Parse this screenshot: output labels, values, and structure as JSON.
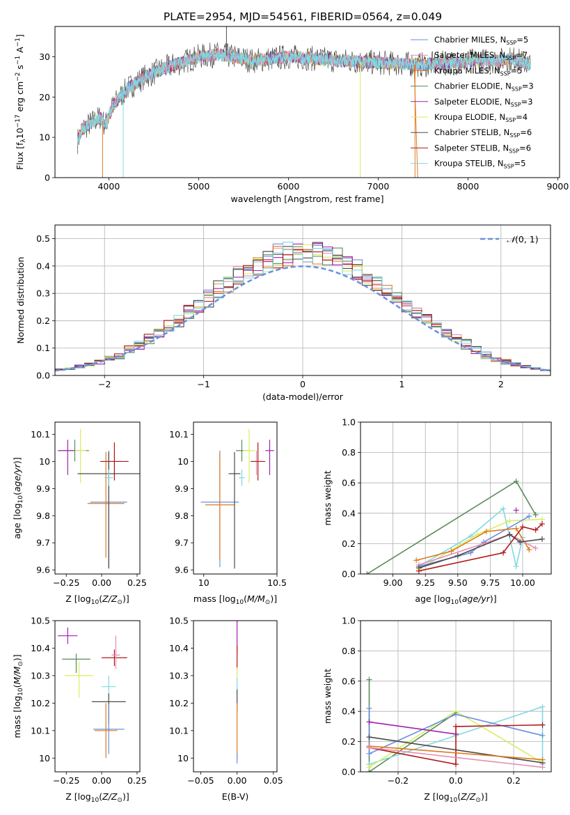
{
  "figure_title": "PLATE=2954, MJD=54561, FIBERID=0564, z=0.049",
  "colors": {
    "Chabrier MILES": "#6a8fdc",
    "Salpeter MILES": "#e68ab4",
    "Kroupa MILES": "#dd7a1e",
    "Chabrier ELODIE": "#5a8a5a",
    "Salpeter ELODIE": "#a020b0",
    "Kroupa ELODIE": "#d8ee60",
    "Chabrier STELIB": "#4a4a4a",
    "Salpeter STELIB": "#b01818",
    "Kroupa STELIB": "#80d8e0"
  },
  "legend": [
    {
      "name": "Chabrier MILES",
      "label": "Chabrier MILES, N",
      "sub": "SSP",
      "tail": "=5"
    },
    {
      "name": "Salpeter MILES",
      "label": "Salpeter MILES, N",
      "sub": "SSP",
      "tail": "=7"
    },
    {
      "name": "Kroupa MILES",
      "label": "Kroupa MILES, N",
      "sub": "SSP",
      "tail": "=5"
    },
    {
      "name": "Chabrier ELODIE",
      "label": "Chabrier ELODIE, N",
      "sub": "SSP",
      "tail": "=3"
    },
    {
      "name": "Salpeter ELODIE",
      "label": "Salpeter ELODIE, N",
      "sub": "SSP",
      "tail": "=3"
    },
    {
      "name": "Kroupa ELODIE",
      "label": "Kroupa ELODIE, N",
      "sub": "SSP",
      "tail": "=4"
    },
    {
      "name": "Chabrier STELIB",
      "label": "Chabrier STELIB, N",
      "sub": "SSP",
      "tail": "=6"
    },
    {
      "name": "Salpeter STELIB",
      "label": "Salpeter STELIB, N",
      "sub": "SSP",
      "tail": "=6"
    },
    {
      "name": "Kroupa STELIB",
      "label": "Kroupa STELIB, N",
      "sub": "SSP",
      "tail": "=5"
    }
  ],
  "chart_data": [
    {
      "id": "spectrum",
      "type": "line",
      "xlabel": "wavelength [Angstrom, rest frame]",
      "ylabel": "Flux [f_λ 10^-17 erg cm^-2 s^-1 A^-1]",
      "xlim": [
        3400,
        9020
      ],
      "ylim": [
        0,
        37.5
      ],
      "xticks": [
        4000,
        5000,
        6000,
        7000,
        8000,
        9000
      ],
      "yticks": [
        0,
        10,
        20,
        30
      ],
      "grid": false,
      "legend_position": "top-right",
      "continuum": [
        [
          3650,
          9
        ],
        [
          3700,
          12
        ],
        [
          3800,
          13.5
        ],
        [
          3900,
          15
        ],
        [
          3960,
          13
        ],
        [
          4050,
          18
        ],
        [
          4200,
          22
        ],
        [
          4400,
          25
        ],
        [
          4600,
          27
        ],
        [
          4800,
          28.5
        ],
        [
          5000,
          30
        ],
        [
          5200,
          30.5
        ],
        [
          5400,
          30
        ],
        [
          5600,
          29
        ],
        [
          5800,
          29.5
        ],
        [
          6000,
          30
        ],
        [
          6300,
          29.5
        ],
        [
          6600,
          29
        ],
        [
          7000,
          28.5
        ],
        [
          7500,
          28
        ],
        [
          7800,
          28.5
        ],
        [
          8100,
          29
        ],
        [
          8300,
          29
        ],
        [
          8500,
          29.5
        ],
        [
          8700,
          28
        ]
      ],
      "spikes": [
        [
          3930,
          0,
          "Kroupa MILES"
        ],
        [
          4160,
          0,
          "Kroupa STELIB"
        ],
        [
          6800,
          0,
          "Kroupa ELODIE"
        ],
        [
          7410,
          0,
          "Kroupa MILES"
        ],
        [
          5310,
          37.5,
          "Chabrier STELIB"
        ]
      ]
    },
    {
      "id": "residuals",
      "type": "histogram",
      "xlabel": "(data-model)/error",
      "ylabel": "Normed distribution",
      "xlim": [
        -2.5,
        2.5
      ],
      "ylim": [
        0,
        0.55
      ],
      "xticks": [
        -2,
        -1,
        0,
        1,
        2
      ],
      "yticks": [
        0.0,
        0.1,
        0.2,
        0.3,
        0.4,
        0.5
      ],
      "grid": true,
      "legend_position": "top-right",
      "reference_curve": {
        "name": "N(0,1)",
        "label_text": "(0, 1)",
        "color": "#6a8fdc"
      },
      "bin_width": 0.1
    },
    {
      "id": "age_vs_Z",
      "type": "errorbar",
      "xlabel": "Z [log10(Z/Z⊙)]",
      "ylabel": "age  [log10(age/yr)]",
      "xlim": [
        -0.33,
        0.27
      ],
      "ylim": [
        9.585,
        10.145
      ],
      "xticks": [
        -0.25,
        0.0,
        0.25
      ],
      "xticklabels": [
        "−0.25",
        "0.00",
        "0.25"
      ],
      "yticks": [
        9.6,
        9.7,
        9.8,
        9.9,
        10.0,
        10.1
      ],
      "points": [
        {
          "series": "Chabrier MILES",
          "x": 0.05,
          "y": 9.85,
          "xerr": 0.13,
          "yerr": [
            0.24,
            0.19
          ]
        },
        {
          "series": "Kroupa MILES",
          "x": 0.03,
          "y": 9.845,
          "xerr": 0.13,
          "yerr": [
            0.2,
            0.19
          ]
        },
        {
          "series": "Salpeter MILES",
          "x": 0.09,
          "y": 10.0,
          "xerr": 0.05,
          "yerr": [
            0.05,
            0.04
          ]
        },
        {
          "series": "Chabrier ELODIE",
          "x": -0.19,
          "y": 10.04,
          "xerr": 0.1,
          "yerr": [
            0.04,
            0.04
          ]
        },
        {
          "series": "Salpeter ELODIE",
          "x": -0.24,
          "y": 10.04,
          "xerr": 0.07,
          "yerr": [
            0.09,
            0.04
          ]
        },
        {
          "series": "Kroupa ELODIE",
          "x": -0.15,
          "y": 10.04,
          "xerr": 0.04,
          "yerr": [
            0.12,
            0.08
          ]
        },
        {
          "series": "Chabrier STELIB",
          "x": 0.05,
          "y": 9.955,
          "xerr": 0.22,
          "yerr": [
            0.35,
            0.08
          ]
        },
        {
          "series": "Salpeter STELIB",
          "x": 0.09,
          "y": 10.0,
          "xerr": 0.1,
          "yerr": [
            0.07,
            0.07
          ]
        },
        {
          "series": "Kroupa STELIB",
          "x": 0.05,
          "y": 9.94,
          "xerr": 0.03,
          "yerr": [
            0.03,
            0.03
          ]
        }
      ]
    },
    {
      "id": "age_vs_mass",
      "type": "errorbar",
      "xlabel": "mass [log10(M/M⊙)]",
      "ylabel": "",
      "xlim": [
        9.93,
        10.5
      ],
      "ylim": [
        9.585,
        10.145
      ],
      "xticks": [
        10.0,
        10.5
      ],
      "yticks": [
        9.6,
        9.7,
        9.8,
        9.9,
        10.0,
        10.1
      ],
      "points": [
        {
          "series": "Chabrier MILES",
          "x": 10.11,
          "y": 9.85,
          "xerr": 0.13,
          "yerr": [
            0.24,
            0.19
          ]
        },
        {
          "series": "Kroupa MILES",
          "x": 10.11,
          "y": 9.84,
          "xerr": 0.1,
          "yerr": [
            0.2,
            0.19
          ]
        },
        {
          "series": "Salpeter MILES",
          "x": 10.36,
          "y": 10.0,
          "xerr": 0.04,
          "yerr": [
            0.05,
            0.04
          ]
        },
        {
          "series": "Chabrier ELODIE",
          "x": 10.26,
          "y": 10.04,
          "xerr": 0.04,
          "yerr": [
            0.04,
            0.04
          ]
        },
        {
          "series": "Salpeter ELODIE",
          "x": 10.45,
          "y": 10.04,
          "xerr": 0.03,
          "yerr": [
            0.09,
            0.04
          ]
        },
        {
          "series": "Kroupa ELODIE",
          "x": 10.31,
          "y": 10.04,
          "xerr": 0.04,
          "yerr": [
            0.12,
            0.08
          ]
        },
        {
          "series": "Chabrier STELIB",
          "x": 10.21,
          "y": 9.955,
          "xerr": 0.04,
          "yerr": [
            0.35,
            0.08
          ]
        },
        {
          "series": "Salpeter STELIB",
          "x": 10.37,
          "y": 10.0,
          "xerr": 0.05,
          "yerr": [
            0.07,
            0.07
          ]
        },
        {
          "series": "Kroupa STELIB",
          "x": 10.26,
          "y": 9.94,
          "xerr": 0.02,
          "yerr": [
            0.03,
            0.03
          ]
        }
      ]
    },
    {
      "id": "weight_vs_age",
      "type": "line",
      "xlabel": "age  [log10(age/yr)]",
      "ylabel": "mass weight",
      "xlim": [
        8.75,
        10.22
      ],
      "ylim": [
        0,
        1.0
      ],
      "xticks": [
        9.0,
        9.25,
        9.5,
        9.75,
        10.0
      ],
      "xticklabels": [
        "9.00",
        "9.25",
        "9.50",
        "9.75",
        "10.00"
      ],
      "yticks": [
        0,
        0.2,
        0.4,
        0.6,
        0.8,
        1.0
      ],
      "grid": true,
      "series": [
        {
          "name": "Chabrier ELODIE",
          "points": [
            [
              8.8,
              0.0
            ],
            [
              9.95,
              0.61
            ],
            [
              10.1,
              0.39
            ]
          ]
        },
        {
          "name": "Kroupa STELIB",
          "points": [
            [
              9.2,
              0.05
            ],
            [
              9.6,
              0.25
            ],
            [
              9.85,
              0.43
            ],
            [
              9.95,
              0.05
            ],
            [
              10.0,
              0.24
            ]
          ]
        },
        {
          "name": "Kroupa ELODIE",
          "points": [
            [
              9.2,
              0.03
            ],
            [
              9.65,
              0.26
            ],
            [
              9.9,
              0.35
            ],
            [
              10.15,
              0.36
            ]
          ]
        },
        {
          "name": "Chabrier MILES",
          "points": [
            [
              9.2,
              0.05
            ],
            [
              9.6,
              0.14
            ],
            [
              9.7,
              0.21
            ],
            [
              10.05,
              0.38
            ]
          ]
        },
        {
          "name": "Kroupa MILES",
          "points": [
            [
              9.18,
              0.09
            ],
            [
              9.45,
              0.15
            ],
            [
              9.72,
              0.28
            ],
            [
              9.95,
              0.3
            ],
            [
              10.05,
              0.16
            ]
          ]
        },
        {
          "name": "Salpeter MILES",
          "points": [
            [
              9.2,
              0.06
            ],
            [
              9.7,
              0.2
            ],
            [
              9.9,
              0.26
            ],
            [
              10.1,
              0.17
            ]
          ]
        },
        {
          "name": "Chabrier STELIB",
          "points": [
            [
              9.2,
              0.04
            ],
            [
              9.5,
              0.12
            ],
            [
              9.9,
              0.26
            ],
            [
              9.98,
              0.21
            ],
            [
              10.15,
              0.23
            ]
          ]
        },
        {
          "name": "Salpeter STELIB",
          "points": [
            [
              9.2,
              0.02
            ],
            [
              9.85,
              0.14
            ],
            [
              10.0,
              0.31
            ],
            [
              10.1,
              0.29
            ],
            [
              10.15,
              0.33
            ]
          ]
        },
        {
          "name": "Salpeter ELODIE",
          "points": [
            [
              9.95,
              0.42
            ]
          ]
        }
      ]
    },
    {
      "id": "mass_vs_Z",
      "type": "errorbar",
      "xlabel": "Z [log10(Z/Z⊙)]",
      "ylabel": "mass [log10(M/M⊙)]",
      "xlim": [
        -0.33,
        0.27
      ],
      "ylim": [
        9.95,
        10.5
      ],
      "xticks": [
        -0.25,
        0.0,
        0.25
      ],
      "xticklabels": [
        "−0.25",
        "0.00",
        "0.25"
      ],
      "yticks": [
        10.0,
        10.1,
        10.2,
        10.3,
        10.4,
        10.5
      ],
      "points": [
        {
          "series": "Salpeter ELODIE",
          "x": -0.24,
          "y": 10.445,
          "xerr": 0.07,
          "yerr": [
            0.03,
            0.03
          ]
        },
        {
          "series": "Salpeter STELIB",
          "x": 0.09,
          "y": 10.365,
          "xerr": 0.09,
          "yerr": [
            0.03,
            0.03
          ]
        },
        {
          "series": "Salpeter MILES",
          "x": 0.1,
          "y": 10.375,
          "xerr": 0.03,
          "yerr": [
            0.05,
            0.07
          ]
        },
        {
          "series": "Chabrier ELODIE",
          "x": -0.18,
          "y": 10.36,
          "xerr": 0.1,
          "yerr": [
            0.05,
            0.02
          ]
        },
        {
          "series": "Kroupa ELODIE",
          "x": -0.16,
          "y": 10.3,
          "xerr": 0.1,
          "yerr": [
            0.08,
            0.05
          ]
        },
        {
          "series": "Kroupa STELIB",
          "x": 0.05,
          "y": 10.26,
          "xerr": 0.05,
          "yerr": [
            0.04,
            0.04
          ]
        },
        {
          "series": "Chabrier STELIB",
          "x": 0.05,
          "y": 10.205,
          "xerr": 0.12,
          "yerr": [
            0.08,
            0.03
          ]
        },
        {
          "series": "Kroupa MILES",
          "x": 0.03,
          "y": 10.1,
          "xerr": 0.08,
          "yerr": [
            0.1,
            0.1
          ]
        },
        {
          "series": "Chabrier MILES",
          "x": 0.05,
          "y": 10.105,
          "xerr": 0.11,
          "yerr": [
            0.09,
            0.09
          ]
        }
      ]
    },
    {
      "id": "mass_vs_EBV",
      "type": "errorbar",
      "xlabel": "E(B-V)",
      "ylabel": "",
      "xlim": [
        -0.06,
        0.055
      ],
      "ylim": [
        9.95,
        10.5
      ],
      "xticks": [
        -0.05,
        0.0,
        0.05
      ],
      "xticklabels": [
        "−0.05",
        "0.00",
        "0.05"
      ],
      "yticks": [
        10.0,
        10.1,
        10.2,
        10.3,
        10.4,
        10.5
      ],
      "points": [
        {
          "series": "Salpeter ELODIE",
          "x": 0.0,
          "y": 10.44,
          "xerr": 0,
          "yerr": [
            0.06,
            0.06
          ]
        },
        {
          "series": "Salpeter STELIB",
          "x": 0.0,
          "y": 10.37,
          "xerr": 0,
          "yerr": [
            0.05,
            0.04
          ]
        },
        {
          "series": "Kroupa ELODIE",
          "x": 0.0,
          "y": 10.3,
          "xerr": 0,
          "yerr": [
            0.03,
            0.03
          ]
        },
        {
          "series": "Kroupa STELIB",
          "x": 0.0,
          "y": 10.26,
          "xerr": 0,
          "yerr": [
            0.03,
            0.03
          ]
        },
        {
          "series": "Chabrier STELIB",
          "x": 0.0,
          "y": 10.21,
          "xerr": 0,
          "yerr": [
            0.04,
            0.04
          ]
        },
        {
          "series": "Kroupa MILES",
          "x": 0.0,
          "y": 10.1,
          "xerr": 0,
          "yerr": [
            0.1,
            0.1
          ]
        },
        {
          "series": "Chabrier MILES",
          "x": 0.0,
          "y": 10.0,
          "xerr": 0,
          "yerr": [
            0.02,
            0.02
          ]
        }
      ]
    },
    {
      "id": "weight_vs_Z",
      "type": "line",
      "xlabel": "Z [log10(Z/Z⊙)]",
      "ylabel": "mass weight",
      "xlim": [
        -0.33,
        0.33
      ],
      "ylim": [
        0,
        1.0
      ],
      "xticks": [
        -0.2,
        0.0,
        0.2
      ],
      "xticklabels": [
        "−0.2",
        "0.0",
        "0.2"
      ],
      "yticks": [
        0,
        0.2,
        0.4,
        0.6,
        0.8,
        1.0
      ],
      "grid": true,
      "series": [
        {
          "name": "Chabrier ELODIE",
          "points": [
            [
              -0.3,
              0.61
            ],
            [
              -0.3,
              0.0
            ],
            [
              0.0,
              0.39
            ]
          ]
        },
        {
          "name": "Kroupa STELIB",
          "points": [
            [
              -0.3,
              0.05
            ],
            [
              0.0,
              0.24
            ],
            [
              0.3,
              0.43
            ],
            [
              0.3,
              0.05
            ]
          ]
        },
        {
          "name": "Kroupa ELODIE",
          "points": [
            [
              -0.3,
              0.03
            ],
            [
              0.0,
              0.4
            ],
            [
              0.3,
              0.06
            ]
          ]
        },
        {
          "name": "Chabrier MILES",
          "points": [
            [
              -0.3,
              0.42
            ],
            [
              -0.3,
              0.12
            ],
            [
              0.0,
              0.38
            ],
            [
              0.3,
              0.24
            ]
          ]
        },
        {
          "name": "Salpeter ELODIE",
          "points": [
            [
              -0.3,
              0.33
            ],
            [
              0.0,
              0.25
            ]
          ]
        },
        {
          "name": "Chabrier STELIB",
          "points": [
            [
              -0.3,
              0.23
            ],
            [
              0.3,
              0.06
            ]
          ]
        },
        {
          "name": "Salpeter STELIB",
          "points": [
            [
              -0.3,
              0.16
            ],
            [
              0.0,
              0.05
            ],
            [
              0.0,
              0.3
            ],
            [
              0.3,
              0.31
            ]
          ]
        },
        {
          "name": "Kroupa MILES",
          "points": [
            [
              -0.3,
              0.17
            ],
            [
              0.3,
              0.08
            ]
          ]
        },
        {
          "name": "Salpeter MILES",
          "points": [
            [
              -0.3,
              0.16
            ],
            [
              0.3,
              0.03
            ]
          ]
        }
      ]
    }
  ]
}
